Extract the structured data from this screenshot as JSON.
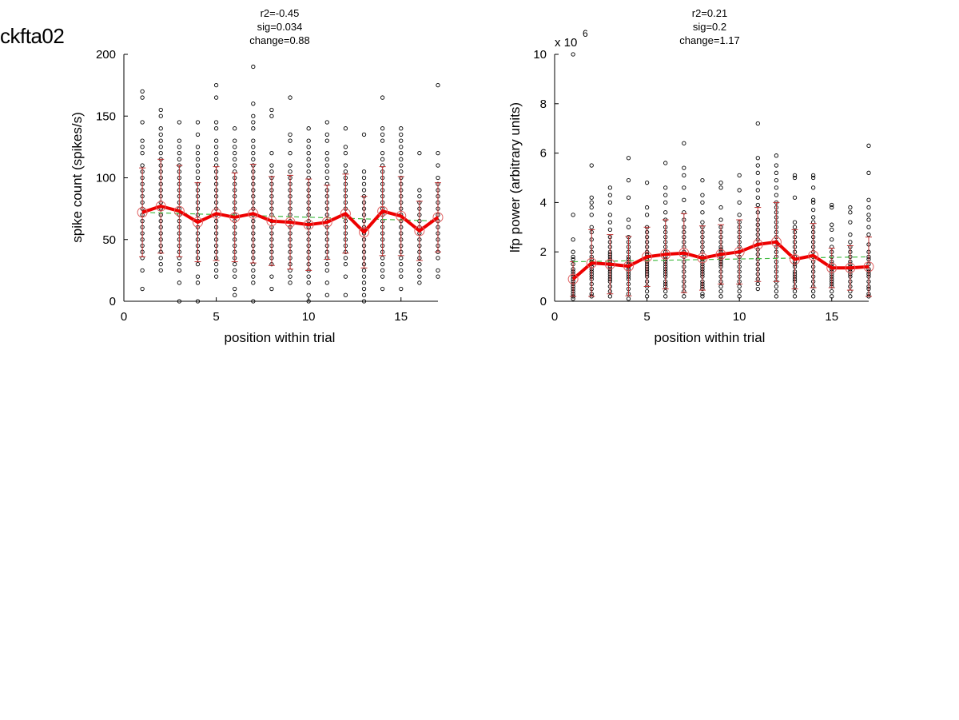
{
  "page_title": "ckfta02",
  "colors": {
    "mean_line": "#ee0000",
    "error_bar": "#c03030",
    "fit_line": "#44bb44",
    "raw_points": "#000000",
    "mean_marker": "#e06060"
  },
  "chart_data": [
    {
      "type": "scatter",
      "stats": [
        "r2=-0.45",
        "sig=0.034",
        "change=0.88"
      ],
      "xlabel": "position within trial",
      "ylabel": "spike count (spikes/s)",
      "xlim": [
        0,
        17
      ],
      "ylim": [
        0,
        200
      ],
      "xticks": [
        0,
        5,
        10,
        15
      ],
      "yticks": [
        0,
        50,
        100,
        150,
        200
      ],
      "exponent_label": "",
      "grid": false,
      "mean": {
        "x": [
          1,
          2,
          3,
          4,
          5,
          6,
          7,
          8,
          9,
          10,
          11,
          12,
          13,
          14,
          15,
          16,
          17
        ],
        "y": [
          72,
          77,
          73,
          64,
          71,
          68,
          71,
          65,
          64,
          62,
          64,
          71,
          56,
          73,
          69,
          57,
          68
        ],
        "err": [
          36,
          38,
          37,
          32,
          38,
          36,
          40,
          36,
          38,
          37,
          30,
          32,
          29,
          36,
          32,
          24,
          28
        ]
      },
      "fit": {
        "x": [
          1,
          17
        ],
        "y": [
          72,
          65
        ]
      },
      "raw": [
        {
          "x": 1,
          "y": [
            10,
            25,
            35,
            40,
            45,
            50,
            55,
            60,
            65,
            70,
            75,
            80,
            85,
            90,
            95,
            100,
            105,
            110,
            120,
            125,
            130,
            145,
            165,
            170
          ]
        },
        {
          "x": 2,
          "y": [
            25,
            30,
            35,
            40,
            45,
            50,
            55,
            60,
            65,
            70,
            75,
            80,
            85,
            90,
            95,
            100,
            105,
            110,
            115,
            120,
            125,
            130,
            135,
            140,
            150,
            155
          ]
        },
        {
          "x": 3,
          "y": [
            0,
            15,
            25,
            30,
            35,
            40,
            45,
            50,
            55,
            60,
            65,
            70,
            75,
            80,
            85,
            90,
            95,
            100,
            105,
            110,
            115,
            120,
            125,
            130,
            145
          ]
        },
        {
          "x": 4,
          "y": [
            0,
            15,
            20,
            30,
            35,
            40,
            45,
            50,
            55,
            60,
            65,
            70,
            75,
            80,
            85,
            90,
            95,
            100,
            105,
            110,
            115,
            120,
            125,
            135,
            145
          ]
        },
        {
          "x": 5,
          "y": [
            20,
            25,
            30,
            35,
            40,
            45,
            50,
            55,
            60,
            65,
            70,
            75,
            80,
            85,
            90,
            95,
            100,
            105,
            110,
            115,
            120,
            125,
            130,
            140,
            145,
            165,
            175
          ]
        },
        {
          "x": 6,
          "y": [
            5,
            10,
            20,
            25,
            30,
            35,
            40,
            45,
            50,
            55,
            60,
            65,
            70,
            75,
            80,
            85,
            90,
            95,
            100,
            105,
            110,
            115,
            120,
            125,
            130,
            140
          ]
        },
        {
          "x": 7,
          "y": [
            0,
            15,
            20,
            25,
            30,
            35,
            40,
            45,
            50,
            55,
            60,
            65,
            70,
            75,
            80,
            85,
            90,
            95,
            100,
            105,
            110,
            115,
            120,
            125,
            130,
            140,
            145,
            150,
            160,
            190
          ]
        },
        {
          "x": 8,
          "y": [
            10,
            20,
            30,
            35,
            40,
            45,
            50,
            55,
            60,
            65,
            70,
            75,
            80,
            85,
            90,
            95,
            100,
            105,
            110,
            120,
            150,
            155
          ]
        },
        {
          "x": 9,
          "y": [
            15,
            20,
            25,
            30,
            35,
            40,
            45,
            50,
            55,
            60,
            65,
            70,
            75,
            80,
            85,
            90,
            95,
            100,
            105,
            110,
            120,
            130,
            135,
            165
          ]
        },
        {
          "x": 10,
          "y": [
            0,
            5,
            15,
            20,
            25,
            30,
            35,
            40,
            45,
            50,
            55,
            60,
            65,
            70,
            75,
            80,
            85,
            90,
            95,
            100,
            105,
            110,
            115,
            120,
            125,
            130,
            140
          ]
        },
        {
          "x": 11,
          "y": [
            5,
            15,
            25,
            30,
            35,
            40,
            45,
            50,
            55,
            60,
            65,
            70,
            75,
            80,
            85,
            90,
            95,
            100,
            105,
            110,
            115,
            120,
            130,
            135,
            145
          ]
        },
        {
          "x": 12,
          "y": [
            5,
            20,
            30,
            35,
            40,
            45,
            50,
            55,
            60,
            65,
            70,
            75,
            80,
            85,
            90,
            95,
            100,
            105,
            110,
            120,
            125,
            140
          ]
        },
        {
          "x": 13,
          "y": [
            0,
            5,
            10,
            15,
            20,
            25,
            30,
            35,
            40,
            45,
            50,
            55,
            60,
            65,
            70,
            75,
            80,
            85,
            90,
            95,
            100,
            105,
            135
          ]
        },
        {
          "x": 14,
          "y": [
            10,
            20,
            25,
            30,
            35,
            40,
            45,
            50,
            55,
            60,
            65,
            70,
            75,
            80,
            85,
            90,
            95,
            100,
            105,
            110,
            115,
            120,
            130,
            135,
            140,
            165
          ]
        },
        {
          "x": 15,
          "y": [
            10,
            20,
            25,
            30,
            35,
            40,
            45,
            50,
            55,
            60,
            65,
            70,
            75,
            80,
            85,
            90,
            95,
            100,
            105,
            110,
            115,
            120,
            125,
            130,
            135,
            140
          ]
        },
        {
          "x": 16,
          "y": [
            15,
            20,
            25,
            30,
            35,
            40,
            45,
            50,
            55,
            60,
            65,
            70,
            75,
            80,
            85,
            90,
            120
          ]
        },
        {
          "x": 17,
          "y": [
            20,
            25,
            35,
            40,
            45,
            50,
            55,
            60,
            65,
            70,
            75,
            80,
            85,
            90,
            95,
            100,
            110,
            120,
            175
          ]
        }
      ]
    },
    {
      "type": "scatter",
      "stats": [
        "r2=0.21",
        "sig=0.2",
        "change=1.17"
      ],
      "xlabel": "position within trial",
      "ylabel": "lfp power (arbitrary units)",
      "xlim": [
        0,
        17
      ],
      "ylim": [
        0,
        10
      ],
      "xticks": [
        0,
        5,
        10,
        15
      ],
      "yticks": [
        0,
        2,
        4,
        6,
        8,
        10
      ],
      "exponent_label": "x 10",
      "exponent_power": "6",
      "grid": false,
      "mean": {
        "x": [
          1,
          2,
          3,
          4,
          5,
          6,
          7,
          8,
          9,
          10,
          11,
          12,
          13,
          14,
          15,
          16,
          17
        ],
        "y": [
          0.9,
          1.55,
          1.5,
          1.42,
          1.8,
          1.9,
          1.95,
          1.75,
          1.9,
          2.0,
          2.3,
          2.4,
          1.7,
          1.85,
          1.35,
          1.35,
          1.4
        ],
        "err": [
          0.7,
          1.35,
          1.2,
          1.2,
          1.2,
          1.4,
          1.6,
          1.3,
          1.2,
          1.3,
          1.5,
          1.6,
          1.2,
          1.3,
          0.8,
          0.9,
          1.2
        ]
      },
      "fit": {
        "x": [
          1,
          17
        ],
        "y": [
          1.6,
          1.8
        ]
      },
      "raw": [
        {
          "x": 1,
          "y": [
            0.1,
            0.2,
            0.3,
            0.4,
            0.5,
            0.6,
            0.7,
            0.8,
            0.9,
            1.0,
            1.1,
            1.2,
            1.3,
            1.5,
            1.7,
            1.8,
            2.0,
            2.5,
            3.5,
            10.0
          ]
        },
        {
          "x": 2,
          "y": [
            0.2,
            0.3,
            0.5,
            0.7,
            0.9,
            1.0,
            1.1,
            1.2,
            1.3,
            1.4,
            1.5,
            1.6,
            1.7,
            1.8,
            2.0,
            2.2,
            2.5,
            2.8,
            3.0,
            3.5,
            3.8,
            4.0,
            4.2,
            5.5
          ]
        },
        {
          "x": 3,
          "y": [
            0.2,
            0.4,
            0.6,
            0.8,
            0.9,
            1.0,
            1.1,
            1.2,
            1.3,
            1.4,
            1.5,
            1.6,
            1.7,
            1.8,
            1.9,
            2.0,
            2.2,
            2.4,
            2.6,
            2.9,
            3.2,
            3.5,
            4.0,
            4.3,
            4.6
          ]
        },
        {
          "x": 4,
          "y": [
            0.1,
            0.3,
            0.5,
            0.7,
            0.9,
            1.0,
            1.1,
            1.2,
            1.3,
            1.4,
            1.5,
            1.6,
            1.7,
            1.8,
            2.0,
            2.2,
            2.4,
            2.6,
            3.0,
            3.3,
            4.2,
            4.9,
            5.8
          ]
        },
        {
          "x": 5,
          "y": [
            0.2,
            0.4,
            0.6,
            0.8,
            1.0,
            1.1,
            1.2,
            1.3,
            1.4,
            1.5,
            1.6,
            1.7,
            1.8,
            1.9,
            2.0,
            2.2,
            2.4,
            2.6,
            2.8,
            3.0,
            3.5,
            3.8,
            4.8
          ]
        },
        {
          "x": 6,
          "y": [
            0.2,
            0.4,
            0.6,
            0.7,
            0.8,
            1.0,
            1.1,
            1.2,
            1.3,
            1.4,
            1.5,
            1.6,
            1.7,
            1.8,
            2.0,
            2.2,
            2.4,
            2.6,
            2.8,
            3.0,
            3.3,
            3.6,
            4.0,
            4.3,
            4.6,
            5.6
          ]
        },
        {
          "x": 7,
          "y": [
            0.2,
            0.4,
            0.6,
            0.8,
            1.0,
            1.2,
            1.4,
            1.6,
            1.8,
            2.0,
            2.2,
            2.4,
            2.6,
            2.8,
            3.0,
            3.3,
            3.6,
            4.1,
            4.6,
            5.1,
            5.4,
            6.4
          ]
        },
        {
          "x": 8,
          "y": [
            0.2,
            0.3,
            0.5,
            0.6,
            0.7,
            0.8,
            1.0,
            1.1,
            1.2,
            1.3,
            1.4,
            1.5,
            1.6,
            1.7,
            1.8,
            2.0,
            2.2,
            2.4,
            2.6,
            2.8,
            3.0,
            3.2,
            3.6,
            4.0,
            4.3,
            4.9
          ]
        },
        {
          "x": 9,
          "y": [
            0.2,
            0.4,
            0.6,
            0.8,
            1.0,
            1.2,
            1.4,
            1.5,
            1.6,
            1.7,
            1.8,
            1.9,
            2.0,
            2.1,
            2.2,
            2.4,
            2.6,
            2.8,
            3.0,
            3.3,
            3.8,
            4.6,
            4.8
          ]
        },
        {
          "x": 10,
          "y": [
            0.2,
            0.4,
            0.6,
            0.8,
            1.0,
            1.2,
            1.4,
            1.6,
            1.8,
            2.0,
            2.2,
            2.4,
            2.6,
            2.8,
            3.0,
            3.2,
            3.5,
            4.0,
            4.5,
            5.1
          ]
        },
        {
          "x": 11,
          "y": [
            0.5,
            0.7,
            0.9,
            1.1,
            1.3,
            1.5,
            1.7,
            1.9,
            2.1,
            2.3,
            2.5,
            2.7,
            2.9,
            3.1,
            3.3,
            3.6,
            3.9,
            4.2,
            4.5,
            4.8,
            5.2,
            5.5,
            5.8,
            7.2
          ]
        },
        {
          "x": 12,
          "y": [
            0.2,
            0.4,
            0.6,
            0.8,
            1.0,
            1.2,
            1.4,
            1.6,
            1.8,
            2.0,
            2.2,
            2.4,
            2.6,
            2.8,
            3.0,
            3.2,
            3.4,
            3.6,
            3.8,
            4.0,
            4.3,
            4.6,
            4.9,
            5.2,
            5.5,
            5.9
          ]
        },
        {
          "x": 13,
          "y": [
            0.2,
            0.4,
            0.6,
            0.8,
            0.9,
            1.0,
            1.1,
            1.2,
            1.4,
            1.5,
            1.6,
            1.8,
            2.0,
            2.2,
            2.4,
            2.6,
            2.8,
            3.0,
            3.2,
            4.2,
            5.0,
            5.1
          ]
        },
        {
          "x": 14,
          "y": [
            0.2,
            0.4,
            0.6,
            0.8,
            1.0,
            1.2,
            1.4,
            1.6,
            1.8,
            2.0,
            2.2,
            2.4,
            2.6,
            2.8,
            3.0,
            3.2,
            3.4,
            3.7,
            4.0,
            4.1,
            4.6,
            5.0,
            5.1
          ]
        },
        {
          "x": 15,
          "y": [
            0.2,
            0.4,
            0.6,
            0.7,
            0.8,
            0.9,
            1.0,
            1.1,
            1.2,
            1.3,
            1.4,
            1.5,
            1.6,
            1.8,
            2.0,
            2.2,
            2.5,
            2.9,
            3.1,
            3.8,
            3.9
          ]
        },
        {
          "x": 16,
          "y": [
            0.2,
            0.4,
            0.6,
            0.8,
            1.0,
            1.1,
            1.2,
            1.3,
            1.4,
            1.5,
            1.6,
            1.8,
            2.0,
            2.2,
            2.4,
            2.7,
            3.2,
            3.6,
            3.8
          ]
        },
        {
          "x": 17,
          "y": [
            0.2,
            0.3,
            0.5,
            0.6,
            0.8,
            1.0,
            1.1,
            1.2,
            1.3,
            1.5,
            1.7,
            1.8,
            2.0,
            2.3,
            2.7,
            3.0,
            3.3,
            3.5,
            3.8,
            4.1,
            5.2,
            6.3
          ]
        }
      ]
    }
  ]
}
